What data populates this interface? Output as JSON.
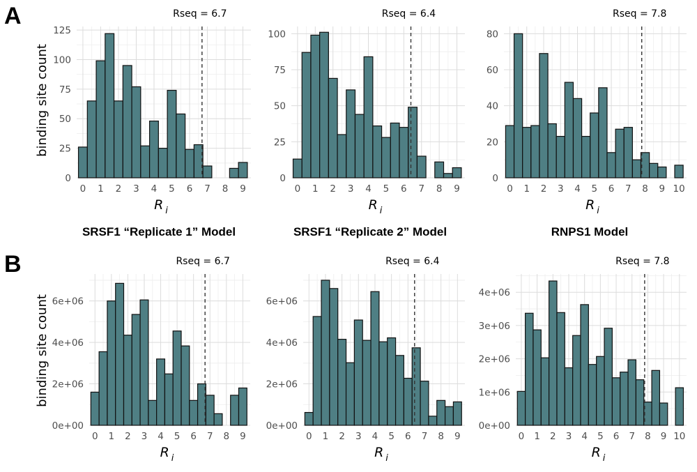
{
  "panels": {
    "A": {
      "letter": "A"
    },
    "B": {
      "letter": "B"
    }
  },
  "model_labels": [
    "SRSF1 “Replicate 1” Model",
    "SRSF1 “Replicate 2” Model",
    "RNPS1 Model"
  ],
  "ylabel": "binding site count",
  "xlabel": "R",
  "xlabel_sub": "i",
  "chart_data": [
    {
      "type": "bar",
      "row": "A",
      "rseq_label": "Rseq = 6.7",
      "rseq": 6.7,
      "xlim": [
        -0.35,
        9.45
      ],
      "ylim": [
        0,
        128
      ],
      "x": [
        0,
        0.5,
        1,
        1.5,
        2,
        2.5,
        3,
        3.5,
        4,
        4.5,
        5,
        5.5,
        6,
        6.5,
        7,
        7.5,
        8,
        8.5,
        9
      ],
      "values": [
        26,
        65,
        99,
        122,
        65,
        95,
        77,
        27,
        48,
        25,
        74,
        54,
        24,
        28,
        10,
        0,
        0,
        8,
        13
      ],
      "yticks": [
        0,
        25,
        50,
        75,
        100,
        125
      ],
      "ytick_labels": [
        "0",
        "25",
        "50",
        "75",
        "100",
        "125"
      ],
      "xticks": [
        0,
        1,
        2,
        3,
        4,
        5,
        6,
        7,
        8,
        9
      ]
    },
    {
      "type": "bar",
      "row": "A",
      "rseq_label": "Rseq = 6.4",
      "rseq": 6.4,
      "xlim": [
        -0.35,
        9.45
      ],
      "ylim": [
        0,
        105
      ],
      "x": [
        0,
        0.5,
        1,
        1.5,
        2,
        2.5,
        3,
        3.5,
        4,
        4.5,
        5,
        5.5,
        6,
        6.5,
        7,
        7.5,
        8,
        8.5,
        9
      ],
      "values": [
        13,
        87,
        99,
        101,
        69,
        30,
        61,
        44,
        84,
        36,
        28,
        38,
        35,
        49,
        15,
        0,
        11,
        3,
        7
      ],
      "yticks": [
        0,
        25,
        50,
        75,
        100
      ],
      "ytick_labels": [
        "0",
        "25",
        "50",
        "75",
        "100"
      ],
      "xticks": [
        0,
        1,
        2,
        3,
        4,
        5,
        6,
        7,
        8,
        9
      ]
    },
    {
      "type": "bar",
      "row": "A",
      "rseq_label": "Rseq = 7.8",
      "rseq": 7.8,
      "xlim": [
        -0.35,
        10.45
      ],
      "ylim": [
        0,
        84
      ],
      "x": [
        0,
        0.5,
        1,
        1.5,
        2,
        2.5,
        3,
        3.5,
        4,
        4.5,
        5,
        5.5,
        6,
        6.5,
        7,
        7.5,
        8,
        8.5,
        9,
        9.5,
        10
      ],
      "values": [
        29,
        80,
        28,
        29,
        69,
        30,
        23,
        53,
        44,
        23,
        36,
        50,
        14,
        27,
        28,
        10,
        14,
        8,
        6,
        0,
        7
      ],
      "yticks": [
        0,
        20,
        40,
        60,
        80
      ],
      "ytick_labels": [
        "0",
        "20",
        "40",
        "60",
        "80"
      ],
      "xticks": [
        0,
        1,
        2,
        3,
        4,
        5,
        6,
        7,
        8,
        9,
        10
      ]
    },
    {
      "type": "bar",
      "row": "B",
      "rseq_label": "Rseq = 6.7",
      "rseq": 6.7,
      "xlim": [
        -0.35,
        9.45
      ],
      "ylim": [
        0,
        7300000
      ],
      "x": [
        0,
        0.5,
        1,
        1.5,
        2,
        2.5,
        3,
        3.5,
        4,
        4.5,
        5,
        5.5,
        6,
        6.5,
        7,
        7.5,
        8,
        8.5,
        9
      ],
      "values": [
        1600000,
        3550000,
        6000000,
        6850000,
        4350000,
        5350000,
        6050000,
        1200000,
        3200000,
        2480000,
        4550000,
        3830000,
        1200000,
        2000000,
        1450000,
        560000,
        0,
        1450000,
        1800000
      ],
      "yticks": [
        0,
        2000000,
        4000000,
        6000000
      ],
      "ytick_labels": [
        "0e+00",
        "2e+06",
        "4e+06",
        "6e+06"
      ],
      "xticks": [
        0,
        1,
        2,
        3,
        4,
        5,
        6,
        7,
        8,
        9
      ]
    },
    {
      "type": "bar",
      "row": "B",
      "rseq_label": "Rseq = 6.4",
      "rseq": 6.4,
      "xlim": [
        -0.35,
        9.45
      ],
      "ylim": [
        0,
        7300000
      ],
      "x": [
        0,
        0.5,
        1,
        1.5,
        2,
        2.5,
        3,
        3.5,
        4,
        4.5,
        5,
        5.5,
        6,
        6.5,
        7,
        7.5,
        8,
        8.5,
        9
      ],
      "values": [
        620000,
        5250000,
        7000000,
        6600000,
        4150000,
        3020000,
        5080000,
        4100000,
        6450000,
        4030000,
        4220000,
        3370000,
        2270000,
        3740000,
        2130000,
        440000,
        1200000,
        900000,
        1130000
      ],
      "yticks": [
        0,
        2000000,
        4000000,
        6000000
      ],
      "ytick_labels": [
        "0e+00",
        "2e+06",
        "4e+06",
        "6e+06"
      ],
      "xticks": [
        0,
        1,
        2,
        3,
        4,
        5,
        6,
        7,
        8,
        9
      ]
    },
    {
      "type": "bar",
      "row": "B",
      "rseq_label": "Rseq = 7.8",
      "rseq": 7.8,
      "xlim": [
        -0.35,
        10.45
      ],
      "ylim": [
        0,
        4550000
      ],
      "x": [
        0,
        0.5,
        1,
        1.5,
        2,
        2.5,
        3,
        3.5,
        4,
        4.5,
        5,
        5.5,
        6,
        6.5,
        7,
        7.5,
        8,
        8.5,
        9,
        9.5,
        10
      ],
      "values": [
        1020000,
        3370000,
        2870000,
        2030000,
        4340000,
        3390000,
        1730000,
        2700000,
        3630000,
        1830000,
        2070000,
        2920000,
        1430000,
        1600000,
        1970000,
        1370000,
        700000,
        1650000,
        670000,
        0,
        1130000
      ],
      "yticks": [
        0,
        1000000,
        2000000,
        3000000,
        4000000
      ],
      "ytick_labels": [
        "0e+00",
        "1e+06",
        "2e+06",
        "3e+06",
        "4e+06"
      ],
      "xticks": [
        0,
        1,
        2,
        3,
        4,
        5,
        6,
        7,
        8,
        9,
        10
      ]
    }
  ]
}
